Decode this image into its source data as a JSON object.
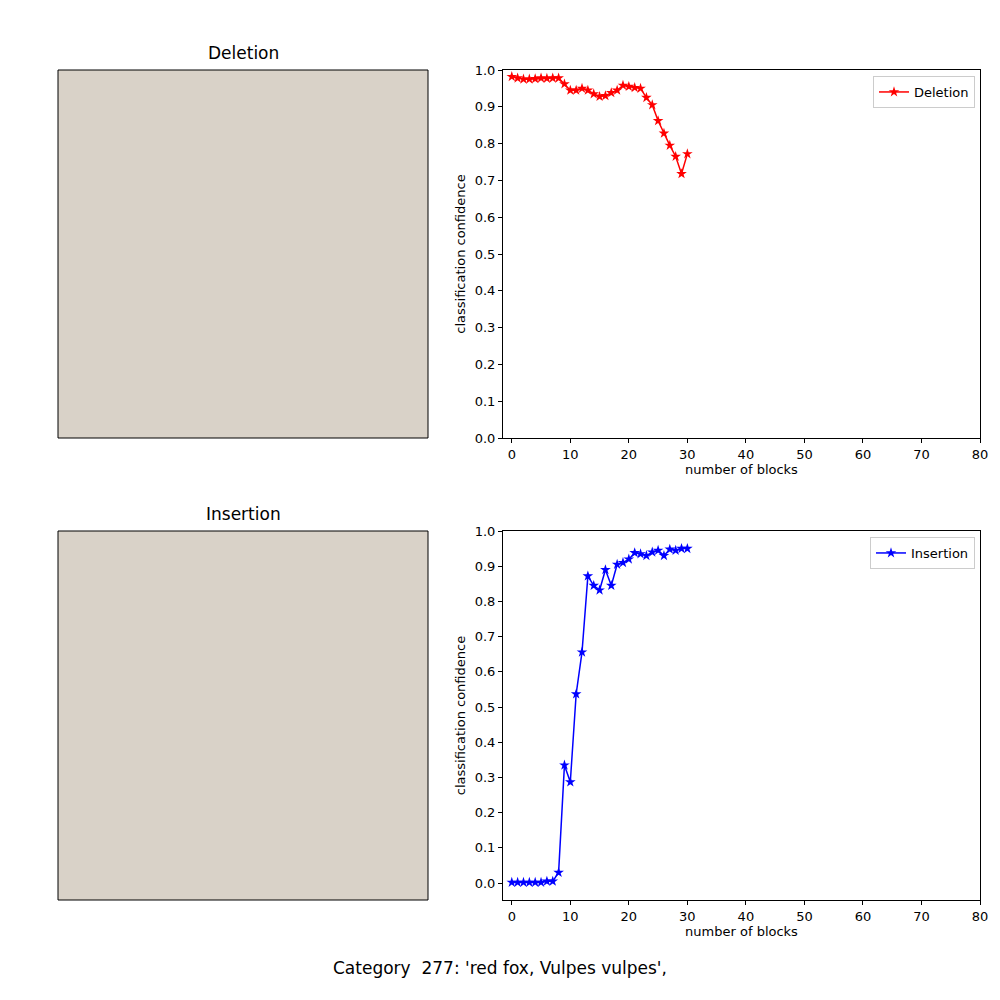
{
  "chart_data": [
    {
      "type": "line",
      "x": [
        0,
        1,
        2,
        3,
        4,
        5,
        6,
        7,
        8,
        9,
        10,
        11,
        12,
        13,
        14,
        15,
        16,
        17,
        18,
        19,
        20,
        21,
        22,
        23,
        24,
        25,
        26,
        27,
        28,
        29,
        30
      ],
      "series": [
        {
          "name": "Deletion",
          "color": "#ff0000",
          "marker": "star",
          "line_style": "solid",
          "values": [
            0.982,
            0.978,
            0.975,
            0.975,
            0.976,
            0.978,
            0.977,
            0.978,
            0.978,
            0.962,
            0.945,
            0.945,
            0.95,
            0.945,
            0.935,
            0.928,
            0.93,
            0.938,
            0.945,
            0.958,
            0.955,
            0.952,
            0.95,
            0.925,
            0.905,
            0.862,
            0.828,
            0.795,
            0.765,
            0.718,
            0.772
          ]
        }
      ],
      "x_label": "number of blocks",
      "y_label": "classification confidence",
      "xlim": [
        -1.5,
        80
      ],
      "ylim": [
        0,
        1
      ],
      "xticks": [
        0,
        10,
        20,
        30,
        40,
        50,
        60,
        70,
        80
      ],
      "yticks": [
        {
          "value": 0,
          "label": "0.0"
        },
        0.1,
        0.2,
        0.3,
        0.4,
        0.5,
        0.6,
        0.7,
        0.8,
        0.9,
        {
          "value": 1,
          "label": "1.0"
        }
      ],
      "legend": "upper right",
      "grid": false
    },
    {
      "type": "line",
      "x": [
        0,
        1,
        2,
        3,
        4,
        5,
        6,
        7,
        8,
        9,
        10,
        11,
        12,
        13,
        14,
        15,
        16,
        17,
        18,
        19,
        20,
        21,
        22,
        23,
        24,
        25,
        26,
        27,
        28,
        29,
        30
      ],
      "series": [
        {
          "name": "Insertion",
          "color": "#0000ff",
          "marker": "star",
          "line_style": "solid",
          "values": [
            0.002,
            0.002,
            0.002,
            0.002,
            0.002,
            0.002,
            0.005,
            0.005,
            0.03,
            0.335,
            0.287,
            0.537,
            0.656,
            0.872,
            0.845,
            0.832,
            0.89,
            0.845,
            0.905,
            0.91,
            0.92,
            0.938,
            0.935,
            0.93,
            0.94,
            0.945,
            0.93,
            0.948,
            0.945,
            0.95,
            0.95
          ]
        }
      ],
      "x_label": "number of blocks",
      "y_label": "classification confidence",
      "xlim": [
        -1.5,
        80
      ],
      "ylim": [
        -0.048,
        1
      ],
      "xticks": [
        0,
        10,
        20,
        30,
        40,
        50,
        60,
        70,
        80
      ],
      "yticks": [
        {
          "value": 0,
          "label": "0.0"
        },
        0.1,
        0.2,
        0.3,
        0.4,
        0.5,
        0.6,
        0.7,
        0.8,
        0.9,
        {
          "value": 1,
          "label": "1.0"
        }
      ],
      "legend": "upper right",
      "grid": false
    }
  ],
  "images": [
    {
      "title": "Deletion"
    },
    {
      "title": "Insertion"
    }
  ],
  "caption": "Category  277: 'red fox, Vulpes vulpes',"
}
